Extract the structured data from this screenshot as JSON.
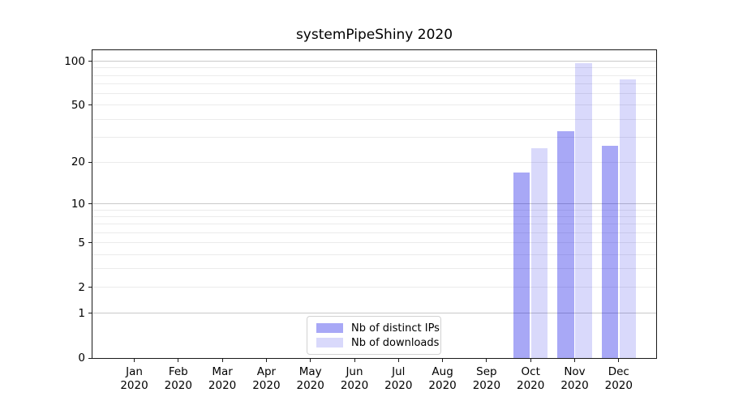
{
  "chart_data": {
    "type": "bar",
    "title": "systemPipeShiny 2020",
    "y_scale": "log1p",
    "months": [
      "Jan",
      "Feb",
      "Mar",
      "Apr",
      "May",
      "Jun",
      "Jul",
      "Aug",
      "Sep",
      "Oct",
      "Nov",
      "Dec"
    ],
    "year": "2020",
    "categories": [
      "Jan 2020",
      "Feb 2020",
      "Mar 2020",
      "Apr 2020",
      "May 2020",
      "Jun 2020",
      "Jul 2020",
      "Aug 2020",
      "Sep 2020",
      "Oct 2020",
      "Nov 2020",
      "Dec 2020"
    ],
    "series": [
      {
        "name": "Nb of distinct IPs",
        "key": "distinct-ips",
        "color": "rgba(0,0,230,0.34)",
        "color_hex": "#a8a8f6",
        "values": [
          0,
          0,
          0,
          0,
          0,
          0,
          0,
          0,
          0,
          17,
          33,
          26
        ]
      },
      {
        "name": "Nb of downloads",
        "key": "downloads",
        "color": "rgba(0,0,230,0.15)",
        "color_hex": "#d9d9fb",
        "values": [
          0,
          0,
          0,
          0,
          0,
          0,
          0,
          0,
          0,
          25,
          97,
          75
        ]
      }
    ],
    "y_ticks": [
      0,
      1,
      2,
      5,
      10,
      20,
      50,
      100
    ],
    "minor_gridlines": [
      2,
      3,
      4,
      5,
      6,
      7,
      8,
      9,
      20,
      30,
      40,
      50,
      60,
      70,
      80,
      90
    ],
    "major_gridlines": [
      1,
      10,
      100
    ],
    "ylim": [
      0,
      119
    ],
    "xlabel": "",
    "ylabel": "",
    "grid": true,
    "legend_position": "lower center"
  },
  "legend": {
    "items": [
      {
        "label": "Nb of distinct IPs"
      },
      {
        "label": "Nb of downloads"
      }
    ]
  },
  "colors": {
    "minor_gridline": "#ebebeb",
    "major_gridline": "#c9c9c9",
    "spine": "#1a1a1a",
    "background": "#ffffff"
  }
}
